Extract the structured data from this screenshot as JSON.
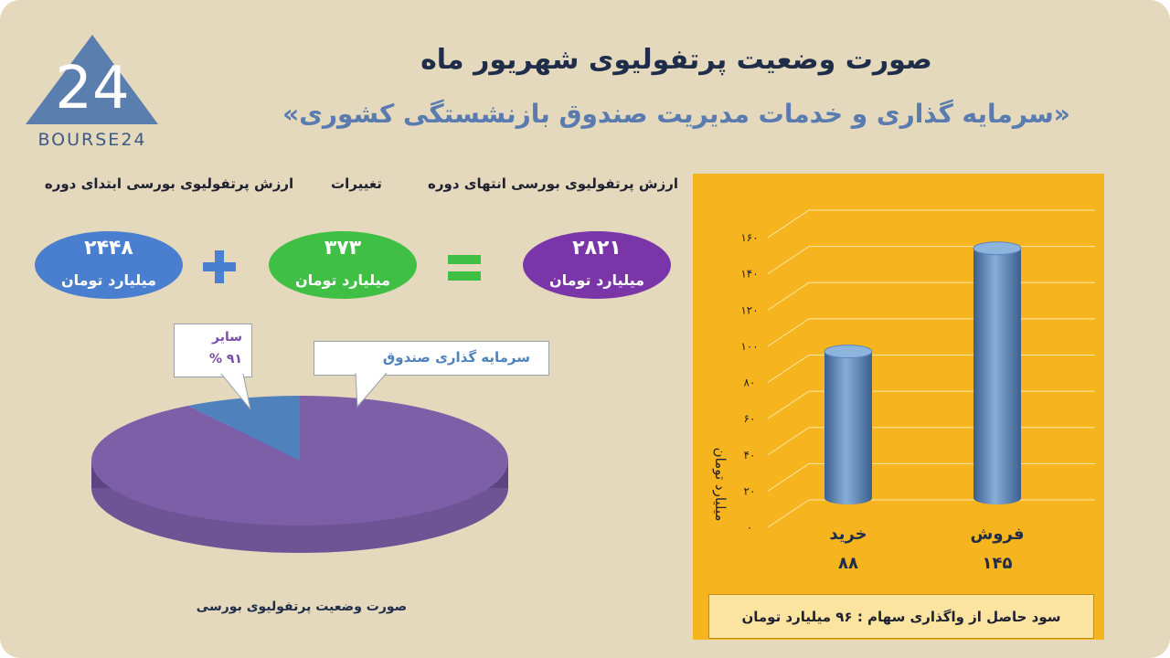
{
  "header": {
    "title": "صورت وضعیت پرتفولیوی شهریور ماه",
    "subtitle": "«سرمایه گذاری و خدمات مدیریت صندوق بازنشستگی کشوری»"
  },
  "logo": {
    "text": "BOURSE24",
    "mark": "24"
  },
  "equation": {
    "start_label": "ارزش پرتفولیوی بورسی ابتدای دوره",
    "change_label": "تغییرات",
    "end_label": "ارزش پرتفولیوی بورسی انتهای دوره",
    "start_value": "۲۴۴۸",
    "change_value": "۳۷۳",
    "end_value": "۲۸۲۱",
    "unit": "میلیارد تومان",
    "plus_sign": "+",
    "equals_sign": "=",
    "colors": {
      "start": "#4a7fd0",
      "change": "#3fbf43",
      "end": "#7a35a8"
    }
  },
  "pie": {
    "callout_other_label": "سایر",
    "callout_other_value": "۹۱ %",
    "callout_fund_label": "سرمایه گذاری صندوق",
    "caption": "صورت وضعیت پرتفولیوی بورسی"
  },
  "bar_chart": {
    "profit_text": "سود حاصل از واگذاری سهام :  ۹۶  میلیارد تومان"
  },
  "chart_data": [
    {
      "type": "pie",
      "slices": [
        {
          "label": "سایر",
          "value": 91,
          "color": "#7d5fa8"
        },
        {
          "label": "سرمایه گذاری صندوق",
          "value": 9,
          "color": "#4f81bd"
        }
      ]
    },
    {
      "type": "bar",
      "categories": [
        "خرید",
        "فروش"
      ],
      "values": [
        88,
        145
      ],
      "value_labels": [
        "۸۸",
        "۱۴۵"
      ],
      "ylabel": "میلیارد تومان",
      "ylim": [
        0,
        160
      ],
      "yticks": [
        "۰",
        "۲۰",
        "۴۰",
        "۶۰",
        "۸۰",
        "۱۰۰",
        "۱۲۰",
        "۱۴۰",
        "۱۶۰"
      ],
      "grid": true,
      "bar_color": "#5a86bd"
    }
  ]
}
